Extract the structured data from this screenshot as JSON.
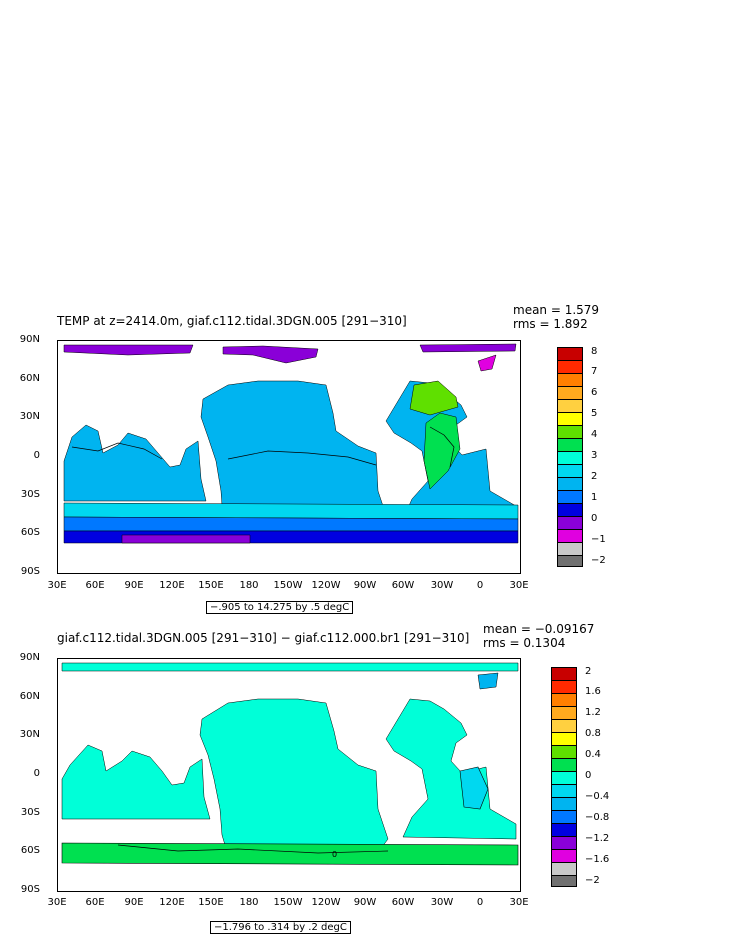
{
  "panels": [
    {
      "title": "TEMP at z=2414.0m, giaf.c112.tidal.3DGN.005 [291−310]",
      "mean": "mean = 1.579",
      "rms": "rms = 1.892",
      "range_label": "−.905 to 14.275 by .5 degC",
      "colorbar_labels": [
        "8",
        "7",
        "6",
        "5",
        "4",
        "3",
        "2",
        "1",
        "0",
        "−1",
        "−2"
      ],
      "colorbar_colors": [
        "#c80000",
        "#ff2a00",
        "#ff7f00",
        "#ffaa1e",
        "#ffd040",
        "#ffff00",
        "#5fe000",
        "#00e050",
        "#00ffd8",
        "#00d8f0",
        "#00b4f0",
        "#0078ff",
        "#0000e0",
        "#8a00d8",
        "#e000e0",
        "#c8c8c8",
        "#707070"
      ]
    },
    {
      "title": "giaf.c112.tidal.3DGN.005 [291−310] − giaf.c112.000.br1 [291−310]",
      "mean": "mean = −0.09167",
      "rms": "rms = 0.1304",
      "range_label": "−1.796 to .314 by .2 degC",
      "colorbar_labels": [
        "2",
        "1.6",
        "1.2",
        "0.8",
        "0.4",
        "0",
        "−0.4",
        "−0.8",
        "−1.2",
        "−1.6",
        "−2"
      ],
      "colorbar_colors": [
        "#c80000",
        "#ff2a00",
        "#ff7f00",
        "#ffaa1e",
        "#ffd040",
        "#ffff00",
        "#5fe000",
        "#00e050",
        "#00ffd8",
        "#00d8f0",
        "#00b4f0",
        "#0078ff",
        "#0000e0",
        "#8a00d8",
        "#e000e0",
        "#c8c8c8",
        "#707070"
      ]
    }
  ],
  "lat_labels": [
    "90N",
    "60N",
    "30N",
    "0",
    "30S",
    "60S",
    "90S"
  ],
  "lon_labels": [
    "30E",
    "60E",
    "90E",
    "120E",
    "150E",
    "180",
    "150W",
    "120W",
    "90W",
    "60W",
    "30W",
    "0",
    "30E"
  ],
  "contour_label": "0"
}
